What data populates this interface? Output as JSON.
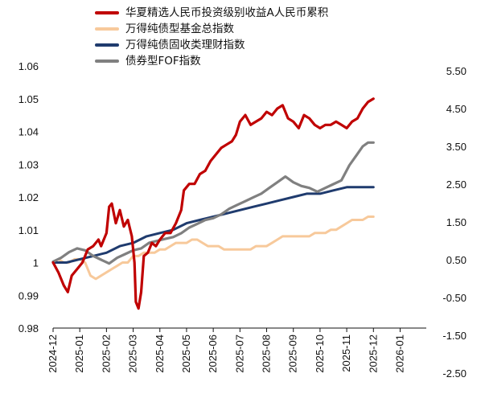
{
  "chart_data": {
    "type": "line",
    "title": "",
    "xlabel": "",
    "ylabel": "",
    "x_tick_labels": [
      "2024-12",
      "2025-01",
      "2025-02",
      "2025-03",
      "2025-04",
      "2025-05",
      "2025-06",
      "2025-07",
      "2025-08",
      "2025-09",
      "2025-10",
      "2025-11",
      "2025-12",
      "2026-01"
    ],
    "y_left": {
      "ticks": [
        "0.98",
        "0.99",
        "1",
        "1.01",
        "1.02",
        "1.03",
        "1.04",
        "1.05",
        "1.06"
      ],
      "range": [
        0.98,
        1.06
      ]
    },
    "y_right": {
      "ticks": [
        "-2.50",
        "-1.50",
        "-0.50",
        "0.50",
        "1.50",
        "2.50",
        "3.50",
        "4.50",
        "5.50"
      ],
      "range": [
        -2.5,
        5.5
      ]
    },
    "grid": false,
    "legend_placement": "top",
    "series": [
      {
        "name": "华夏精选人民币投资级别收益A人民币累积",
        "axis": "left",
        "color": "#C00000",
        "points": [
          [
            0,
            1.0
          ],
          [
            0.2,
            0.997
          ],
          [
            0.4,
            0.993
          ],
          [
            0.55,
            0.991
          ],
          [
            0.7,
            0.996
          ],
          [
            0.9,
            0.998
          ],
          [
            1.1,
            1.0
          ],
          [
            1.3,
            1.004
          ],
          [
            1.5,
            1.005
          ],
          [
            1.7,
            1.007
          ],
          [
            1.8,
            1.005
          ],
          [
            2.0,
            1.009
          ],
          [
            2.1,
            1.017
          ],
          [
            2.2,
            1.018
          ],
          [
            2.35,
            1.012
          ],
          [
            2.5,
            1.016
          ],
          [
            2.65,
            1.011
          ],
          [
            2.8,
            1.013
          ],
          [
            2.95,
            1.008
          ],
          [
            3.05,
            1.0
          ],
          [
            3.1,
            0.988
          ],
          [
            3.2,
            0.986
          ],
          [
            3.3,
            0.991
          ],
          [
            3.4,
            1.002
          ],
          [
            3.55,
            1.003
          ],
          [
            3.7,
            1.006
          ],
          [
            3.85,
            1.005
          ],
          [
            4.0,
            1.007
          ],
          [
            4.2,
            1.009
          ],
          [
            4.4,
            1.009
          ],
          [
            4.6,
            1.012
          ],
          [
            4.8,
            1.016
          ],
          [
            4.9,
            1.022
          ],
          [
            5.1,
            1.024
          ],
          [
            5.3,
            1.024
          ],
          [
            5.5,
            1.027
          ],
          [
            5.7,
            1.028
          ],
          [
            5.9,
            1.031
          ],
          [
            6.1,
            1.033
          ],
          [
            6.3,
            1.035
          ],
          [
            6.5,
            1.036
          ],
          [
            6.7,
            1.037
          ],
          [
            6.85,
            1.039
          ],
          [
            7.0,
            1.043
          ],
          [
            7.2,
            1.045
          ],
          [
            7.4,
            1.042
          ],
          [
            7.6,
            1.043
          ],
          [
            7.8,
            1.044
          ],
          [
            8.0,
            1.046
          ],
          [
            8.2,
            1.045
          ],
          [
            8.4,
            1.047
          ],
          [
            8.6,
            1.048
          ],
          [
            8.8,
            1.044
          ],
          [
            9.0,
            1.043
          ],
          [
            9.2,
            1.041
          ],
          [
            9.4,
            1.045
          ],
          [
            9.6,
            1.044
          ],
          [
            9.8,
            1.042
          ],
          [
            10.0,
            1.041
          ],
          [
            10.2,
            1.042
          ],
          [
            10.4,
            1.042
          ],
          [
            10.6,
            1.043
          ],
          [
            10.8,
            1.042
          ],
          [
            11.0,
            1.041
          ],
          [
            11.2,
            1.043
          ],
          [
            11.4,
            1.044
          ],
          [
            11.6,
            1.047
          ],
          [
            11.8,
            1.049
          ],
          [
            12.0,
            1.05
          ]
        ]
      },
      {
        "name": "万得纯债型基金总指数",
        "axis": "left",
        "color": "#F7C99B",
        "points": [
          [
            0,
            1.0
          ],
          [
            0.2,
            1.001
          ],
          [
            0.4,
            1.0
          ],
          [
            0.6,
            1.0
          ],
          [
            0.8,
            1.001
          ],
          [
            1.0,
            1.001
          ],
          [
            1.2,
            1.0
          ],
          [
            1.4,
            0.996
          ],
          [
            1.6,
            0.995
          ],
          [
            1.8,
            0.996
          ],
          [
            2.0,
            0.997
          ],
          [
            2.2,
            0.998
          ],
          [
            2.4,
            0.999
          ],
          [
            2.6,
            1.0
          ],
          [
            2.8,
            1.0
          ],
          [
            3.0,
            1.002
          ],
          [
            3.2,
            1.002
          ],
          [
            3.4,
            1.003
          ],
          [
            3.6,
            1.003
          ],
          [
            3.8,
            1.003
          ],
          [
            4.0,
            1.004
          ],
          [
            4.2,
            1.004
          ],
          [
            4.4,
            1.005
          ],
          [
            4.6,
            1.006
          ],
          [
            4.8,
            1.006
          ],
          [
            5.0,
            1.006
          ],
          [
            5.2,
            1.007
          ],
          [
            5.4,
            1.007
          ],
          [
            5.6,
            1.006
          ],
          [
            5.8,
            1.005
          ],
          [
            6.0,
            1.005
          ],
          [
            6.2,
            1.005
          ],
          [
            6.4,
            1.004
          ],
          [
            6.6,
            1.004
          ],
          [
            6.8,
            1.004
          ],
          [
            7.0,
            1.004
          ],
          [
            7.2,
            1.004
          ],
          [
            7.4,
            1.004
          ],
          [
            7.6,
            1.005
          ],
          [
            7.8,
            1.005
          ],
          [
            8.0,
            1.005
          ],
          [
            8.2,
            1.006
          ],
          [
            8.4,
            1.007
          ],
          [
            8.6,
            1.008
          ],
          [
            8.8,
            1.008
          ],
          [
            9.0,
            1.008
          ],
          [
            9.2,
            1.008
          ],
          [
            9.4,
            1.008
          ],
          [
            9.6,
            1.008
          ],
          [
            9.8,
            1.009
          ],
          [
            10.0,
            1.009
          ],
          [
            10.2,
            1.009
          ],
          [
            10.4,
            1.01
          ],
          [
            10.6,
            1.01
          ],
          [
            10.8,
            1.011
          ],
          [
            11.0,
            1.012
          ],
          [
            11.2,
            1.013
          ],
          [
            11.4,
            1.013
          ],
          [
            11.6,
            1.013
          ],
          [
            11.8,
            1.014
          ],
          [
            12.0,
            1.014
          ]
        ]
      },
      {
        "name": "万得纯债固收类理财指数",
        "axis": "left",
        "color": "#1F3B6E",
        "points": [
          [
            0,
            1.0
          ],
          [
            0.5,
            1.0
          ],
          [
            1.0,
            1.001
          ],
          [
            1.5,
            1.002
          ],
          [
            2.0,
            1.003
          ],
          [
            2.5,
            1.005
          ],
          [
            3.0,
            1.006
          ],
          [
            3.5,
            1.008
          ],
          [
            4.0,
            1.009
          ],
          [
            4.5,
            1.01
          ],
          [
            5.0,
            1.012
          ],
          [
            5.5,
            1.013
          ],
          [
            6.0,
            1.014
          ],
          [
            6.5,
            1.015
          ],
          [
            7.0,
            1.016
          ],
          [
            7.5,
            1.017
          ],
          [
            8.0,
            1.018
          ],
          [
            8.5,
            1.019
          ],
          [
            9.0,
            1.02
          ],
          [
            9.5,
            1.021
          ],
          [
            10.0,
            1.021
          ],
          [
            10.5,
            1.022
          ],
          [
            11.0,
            1.023
          ],
          [
            11.5,
            1.023
          ],
          [
            12.0,
            1.023
          ]
        ]
      },
      {
        "name": "债券型FOF指数",
        "axis": "right",
        "color": "#808080",
        "points": [
          [
            0,
            0.45
          ],
          [
            0.3,
            0.55
          ],
          [
            0.6,
            0.7
          ],
          [
            0.9,
            0.8
          ],
          [
            1.2,
            0.75
          ],
          [
            1.5,
            0.6
          ],
          [
            1.8,
            0.5
          ],
          [
            2.1,
            0.4
          ],
          [
            2.4,
            0.55
          ],
          [
            2.7,
            0.65
          ],
          [
            3.0,
            0.75
          ],
          [
            3.3,
            0.8
          ],
          [
            3.6,
            0.95
          ],
          [
            3.9,
            1.0
          ],
          [
            4.2,
            1.05
          ],
          [
            4.5,
            1.1
          ],
          [
            4.8,
            1.2
          ],
          [
            5.1,
            1.35
          ],
          [
            5.4,
            1.45
          ],
          [
            5.7,
            1.55
          ],
          [
            6.0,
            1.6
          ],
          [
            6.3,
            1.7
          ],
          [
            6.6,
            1.85
          ],
          [
            6.9,
            1.95
          ],
          [
            7.2,
            2.05
          ],
          [
            7.5,
            2.15
          ],
          [
            7.8,
            2.25
          ],
          [
            8.1,
            2.4
          ],
          [
            8.4,
            2.55
          ],
          [
            8.7,
            2.7
          ],
          [
            9.0,
            2.55
          ],
          [
            9.3,
            2.45
          ],
          [
            9.6,
            2.4
          ],
          [
            9.9,
            2.3
          ],
          [
            10.2,
            2.4
          ],
          [
            10.5,
            2.5
          ],
          [
            10.8,
            2.6
          ],
          [
            11.1,
            3.0
          ],
          [
            11.4,
            3.3
          ],
          [
            11.6,
            3.5
          ],
          [
            11.8,
            3.6
          ],
          [
            12.0,
            3.6
          ]
        ]
      }
    ]
  }
}
